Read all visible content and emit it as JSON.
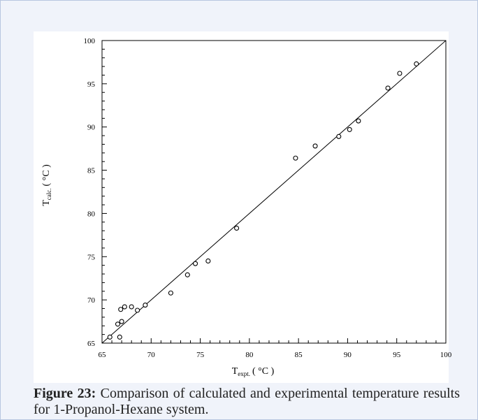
{
  "caption": {
    "label": "Figure 23:",
    "text": "Comparison of calculated and experimental temperature results for 1-Propanol-Hexane system."
  },
  "colors": {
    "panel_bg": "#f0f3fa",
    "panel_border": "#b8c6e0",
    "ink": "#000000"
  },
  "chart_data": {
    "type": "scatter",
    "title": "",
    "xlabel": {
      "main": "T",
      "sub": "expt.",
      "unit": "( °C )"
    },
    "ylabel": {
      "main": "T",
      "sub": "calc.",
      "unit": "( °C )"
    },
    "xlim": [
      65,
      100
    ],
    "ylim": [
      65,
      100
    ],
    "xticks": [
      "65",
      "70",
      "75",
      "80",
      "85",
      "90",
      "95",
      "100"
    ],
    "yticks": [
      "65",
      "70",
      "75",
      "80",
      "85",
      "90",
      "95",
      "100"
    ],
    "grid": false,
    "marker": "open-circle",
    "reference_line": {
      "type": "y=x",
      "x": [
        65,
        100
      ],
      "y": [
        65,
        100
      ]
    },
    "points": [
      {
        "x": 65.8,
        "y": 65.7
      },
      {
        "x": 66.8,
        "y": 65.7
      },
      {
        "x": 66.6,
        "y": 67.2
      },
      {
        "x": 67.0,
        "y": 67.5
      },
      {
        "x": 66.9,
        "y": 68.9
      },
      {
        "x": 67.3,
        "y": 69.2
      },
      {
        "x": 68.0,
        "y": 69.2
      },
      {
        "x": 68.6,
        "y": 68.8
      },
      {
        "x": 69.4,
        "y": 69.4
      },
      {
        "x": 72.0,
        "y": 70.8
      },
      {
        "x": 73.7,
        "y": 72.9
      },
      {
        "x": 74.5,
        "y": 74.2
      },
      {
        "x": 75.8,
        "y": 74.5
      },
      {
        "x": 78.7,
        "y": 78.3
      },
      {
        "x": 84.7,
        "y": 86.4
      },
      {
        "x": 86.7,
        "y": 87.8
      },
      {
        "x": 89.1,
        "y": 88.9
      },
      {
        "x": 90.2,
        "y": 89.7
      },
      {
        "x": 91.1,
        "y": 90.7
      },
      {
        "x": 94.1,
        "y": 94.5
      },
      {
        "x": 95.3,
        "y": 96.2
      },
      {
        "x": 97.0,
        "y": 97.3
      }
    ]
  }
}
